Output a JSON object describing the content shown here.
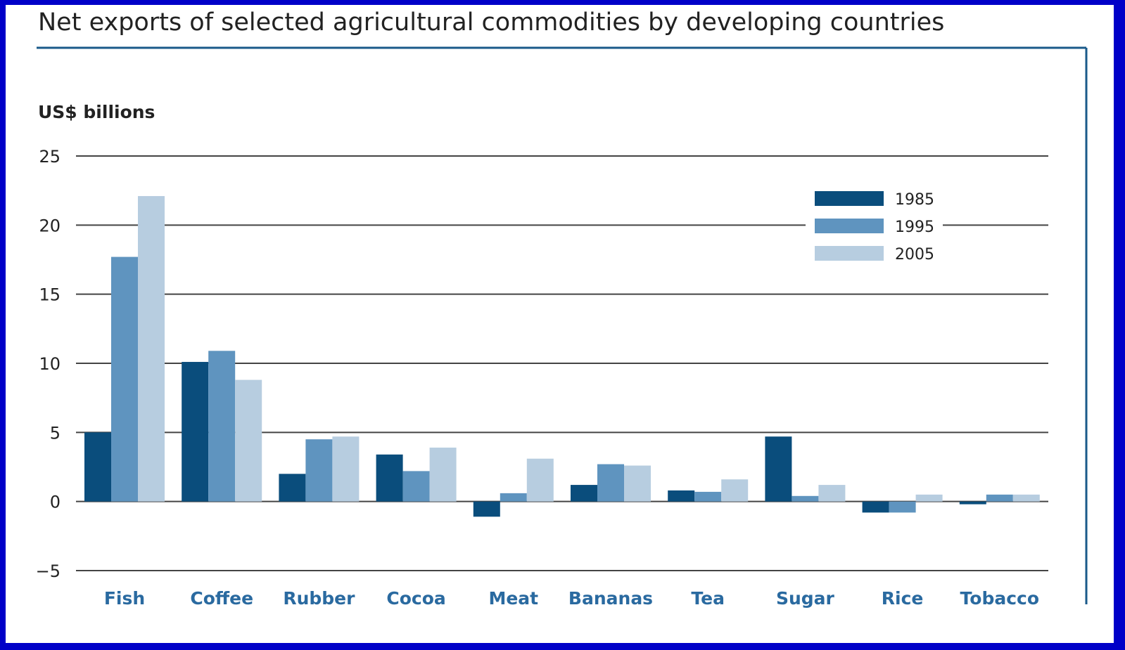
{
  "chart_data": {
    "type": "bar",
    "title": "Net exports of selected agricultural commodities by developing countries",
    "ylabel": "US$ billions",
    "xlabel": "",
    "ylim": [
      -5,
      25
    ],
    "yticks": [
      -5,
      0,
      5,
      10,
      15,
      20,
      25
    ],
    "ytick_labels": [
      "−5",
      "0",
      "5",
      "10",
      "15",
      "20",
      "25"
    ],
    "grid": true,
    "legend_position": "top-right",
    "categories": [
      "Fish",
      "Coffee",
      "Rubber",
      "Cocoa",
      "Meat",
      "Bananas",
      "Tea",
      "Sugar",
      "Rice",
      "Tobacco"
    ],
    "series": [
      {
        "name": "1985",
        "color": "#0a4d7c",
        "values": [
          5.0,
          10.1,
          2.0,
          3.4,
          -1.1,
          1.2,
          0.8,
          4.7,
          -0.8,
          -0.2
        ]
      },
      {
        "name": "1995",
        "color": "#5f94bf",
        "values": [
          17.7,
          10.9,
          4.5,
          2.2,
          0.6,
          2.7,
          0.7,
          0.4,
          -0.8,
          0.5
        ]
      },
      {
        "name": "2005",
        "color": "#b7cde0",
        "values": [
          22.1,
          8.8,
          4.7,
          3.9,
          3.1,
          2.6,
          1.6,
          1.2,
          0.5,
          0.5
        ]
      }
    ]
  }
}
